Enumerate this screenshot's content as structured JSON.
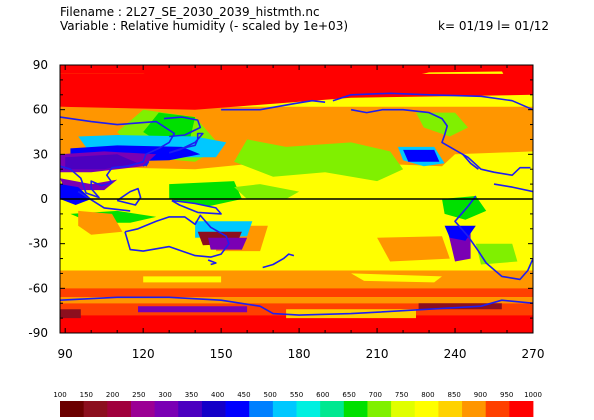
{
  "header": {
    "filename": "Filename : 2L27_SE_2030_2039_histmth.nc",
    "variable": "Variable : Relative humidity (- scaled by 1e+03)",
    "indices": "k= 01/19 l= 01/12"
  },
  "axes": {
    "x_ticks": [
      "90",
      "120",
      "150",
      "180",
      "210",
      "240",
      "270"
    ],
    "y_ticks": [
      "90",
      "60",
      "30",
      "0",
      "-30",
      "-60",
      "-90"
    ]
  },
  "colorbar": {
    "labels": [
      "100",
      "150",
      "200",
      "250",
      "300",
      "350",
      "400",
      "450",
      "500",
      "550",
      "600",
      "650",
      "700",
      "750",
      "800",
      "850",
      "900",
      "950",
      "1000"
    ],
    "colors": [
      "#6b0000",
      "#8c0f1e",
      "#a0003c",
      "#9b0094",
      "#7a00b4",
      "#4b00c0",
      "#1400c8",
      "#0000ff",
      "#0080ff",
      "#00c8ff",
      "#00f0e0",
      "#00e890",
      "#00e000",
      "#80f000",
      "#e0ff00",
      "#ffff00",
      "#ffd200",
      "#ff9600",
      "#ff4000",
      "#ff0000"
    ]
  },
  "map_colors": {
    "red": "#ff0000",
    "orange_red": "#ff4000",
    "orange": "#ff9600",
    "yellow_orange": "#ffd200",
    "yellow": "#ffff00",
    "yellow_green": "#e0ff00",
    "light_green": "#80f000",
    "green": "#00e000",
    "cyan": "#00c8ff",
    "blue": "#0000ff",
    "indigo": "#4b00c0",
    "purple": "#7a00b4",
    "crimson": "#8c0f1e",
    "coast": "#1e1ef0"
  }
}
